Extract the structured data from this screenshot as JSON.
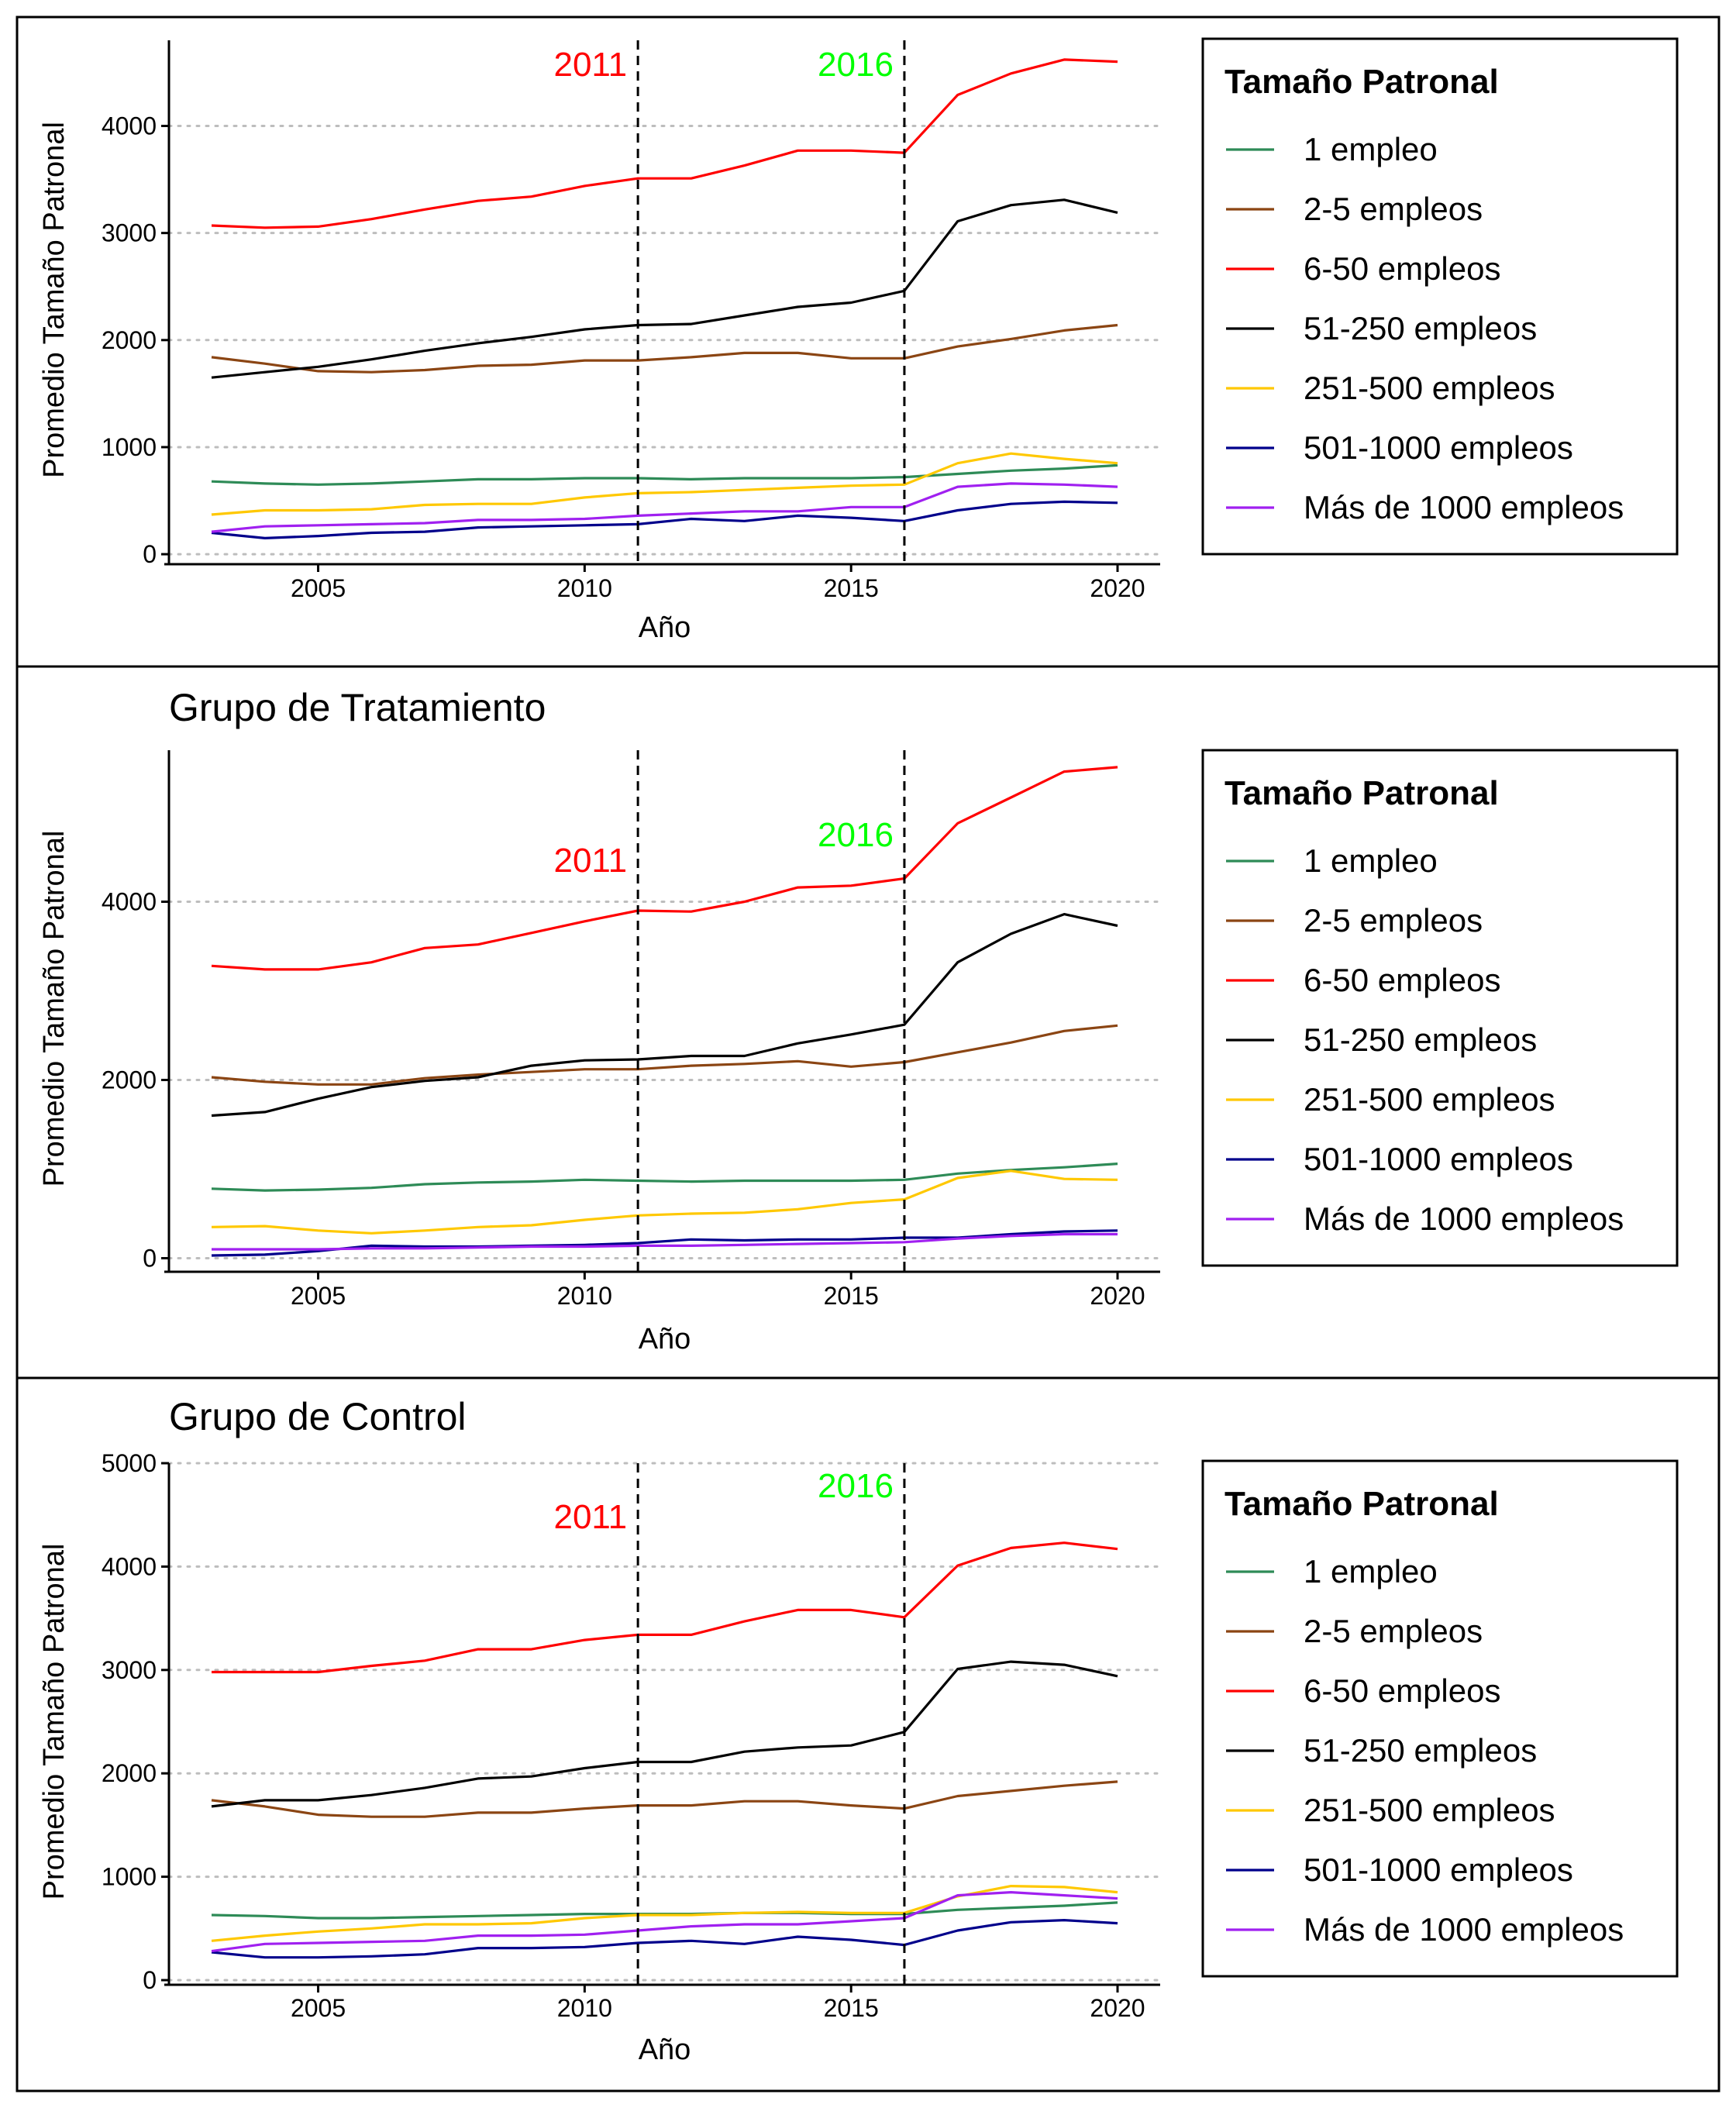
{
  "colors": {
    "1 empleo": "#2E8B57",
    "2-5 empleos": "#8B4513",
    "6-50 empleos": "#FF0000",
    "51-250 empleos": "#000000",
    "251-500 empleos": "#FFC800",
    "501-1000 empleos": "#00008B",
    "Más de 1000 empleos": "#A020F0",
    "event_2011": "#FF0000",
    "event_2016": "#00FF00"
  },
  "chart_data": [
    {
      "type": "line",
      "title": "",
      "xlabel": "Año",
      "ylabel": "Promedio Tamaño Patronal",
      "xlim": [
        2002.2,
        2020.8
      ],
      "ylim": [
        -50,
        4800
      ],
      "xticks": [
        2005,
        2010,
        2015,
        2020
      ],
      "yticks": [
        0,
        1000,
        2000,
        3000,
        4000
      ],
      "grid": "horizontal dotted",
      "legend_title": "Tamaño Patronal",
      "legend_position": "right",
      "events": [
        {
          "x": 2011,
          "label": "2011",
          "color": "#FF0000"
        },
        {
          "x": 2016,
          "label": "2016",
          "color": "#00FF00"
        }
      ],
      "x": [
        2003,
        2004,
        2005,
        2006,
        2007,
        2008,
        2009,
        2010,
        2011,
        2012,
        2013,
        2014,
        2015,
        2016,
        2017,
        2018,
        2019,
        2020
      ],
      "series": [
        {
          "name": "1 empleo",
          "values": [
            680,
            660,
            650,
            660,
            680,
            700,
            700,
            710,
            710,
            700,
            710,
            710,
            710,
            720,
            750,
            780,
            800,
            830
          ]
        },
        {
          "name": "2-5 empleos",
          "values": [
            1840,
            1780,
            1710,
            1700,
            1720,
            1760,
            1770,
            1810,
            1810,
            1840,
            1880,
            1880,
            1830,
            1830,
            1940,
            2010,
            2090,
            2140
          ]
        },
        {
          "name": "6-50 empleos",
          "values": [
            3070,
            3050,
            3060,
            3130,
            3220,
            3300,
            3340,
            3440,
            3510,
            3510,
            3630,
            3770,
            3770,
            3750,
            4290,
            4490,
            4620,
            4600
          ]
        },
        {
          "name": "51-250 empleos",
          "values": [
            1650,
            1700,
            1750,
            1820,
            1900,
            1970,
            2030,
            2100,
            2140,
            2150,
            2230,
            2310,
            2350,
            2460,
            3110,
            3260,
            3310,
            3190
          ]
        },
        {
          "name": "251-500 empleos",
          "values": [
            370,
            410,
            410,
            420,
            460,
            470,
            470,
            530,
            570,
            580,
            600,
            620,
            640,
            650,
            850,
            940,
            890,
            850
          ]
        },
        {
          "name": "501-1000 empleos",
          "values": [
            200,
            150,
            170,
            200,
            210,
            250,
            260,
            270,
            280,
            330,
            310,
            360,
            340,
            310,
            410,
            470,
            490,
            480
          ]
        },
        {
          "name": "Más de 1000 empleos",
          "values": [
            210,
            260,
            270,
            280,
            290,
            320,
            320,
            330,
            360,
            380,
            400,
            400,
            440,
            440,
            630,
            660,
            650,
            630
          ]
        }
      ]
    },
    {
      "type": "line",
      "title": "Grupo de Tratamiento",
      "xlabel": "Año",
      "ylabel": "Promedio Tamaño Patronal",
      "xlim": [
        2002.2,
        2020.8
      ],
      "ylim": [
        -100,
        5700
      ],
      "xticks": [
        2005,
        2010,
        2015,
        2020
      ],
      "yticks": [
        0,
        2000,
        4000
      ],
      "grid": "horizontal dotted",
      "legend_title": "Tamaño Patronal",
      "legend_position": "right",
      "events": [
        {
          "x": 2011,
          "label": "2011",
          "color": "#FF0000"
        },
        {
          "x": 2016,
          "label": "2016",
          "color": "#00FF00"
        }
      ],
      "x": [
        2003,
        2004,
        2005,
        2006,
        2007,
        2008,
        2009,
        2010,
        2011,
        2012,
        2013,
        2014,
        2015,
        2016,
        2017,
        2018,
        2019,
        2020
      ],
      "series": [
        {
          "name": "1 empleo",
          "values": [
            780,
            760,
            770,
            790,
            830,
            850,
            860,
            880,
            870,
            860,
            870,
            870,
            870,
            880,
            950,
            990,
            1020,
            1060
          ]
        },
        {
          "name": "2-5 empleos",
          "values": [
            2030,
            1980,
            1950,
            1950,
            2020,
            2060,
            2090,
            2120,
            2120,
            2160,
            2180,
            2210,
            2150,
            2200,
            2310,
            2420,
            2550,
            2610
          ]
        },
        {
          "name": "6-50 empleos",
          "values": [
            3280,
            3240,
            3240,
            3320,
            3480,
            3520,
            3650,
            3780,
            3900,
            3890,
            4000,
            4160,
            4180,
            4260,
            4880,
            5170,
            5460,
            5510
          ]
        },
        {
          "name": "51-250 empleos",
          "values": [
            1600,
            1640,
            1790,
            1920,
            1990,
            2030,
            2160,
            2220,
            2230,
            2270,
            2270,
            2410,
            2510,
            2620,
            3320,
            3640,
            3860,
            3730
          ]
        },
        {
          "name": "251-500 empleos",
          "values": [
            350,
            360,
            310,
            280,
            310,
            350,
            370,
            430,
            480,
            500,
            510,
            550,
            620,
            660,
            900,
            980,
            890,
            880
          ]
        },
        {
          "name": "501-1000 empleos",
          "values": [
            30,
            40,
            80,
            140,
            130,
            130,
            140,
            150,
            170,
            210,
            200,
            210,
            210,
            230,
            230,
            270,
            300,
            310
          ]
        },
        {
          "name": "Más de 1000 empleos",
          "values": [
            100,
            100,
            100,
            110,
            110,
            120,
            130,
            130,
            140,
            140,
            150,
            160,
            170,
            180,
            220,
            250,
            270,
            270
          ]
        }
      ]
    },
    {
      "type": "line",
      "title": "Grupo de Control",
      "xlabel": "Año",
      "ylabel": "Promedio Tamaño Patronal",
      "xlim": [
        2002.2,
        2020.8
      ],
      "ylim": [
        0,
        5000
      ],
      "xticks": [
        2005,
        2010,
        2015,
        2020
      ],
      "yticks": [
        0,
        1000,
        2000,
        3000,
        4000,
        5000
      ],
      "grid": "horizontal dotted",
      "legend_title": "Tamaño Patronal",
      "legend_position": "right",
      "events": [
        {
          "x": 2011,
          "label": "2011",
          "color": "#FF0000"
        },
        {
          "x": 2016,
          "label": "2016",
          "color": "#00FF00"
        }
      ],
      "x": [
        2003,
        2004,
        2005,
        2006,
        2007,
        2008,
        2009,
        2010,
        2011,
        2012,
        2013,
        2014,
        2015,
        2016,
        2017,
        2018,
        2019,
        2020
      ],
      "series": [
        {
          "name": "1 empleo",
          "values": [
            630,
            620,
            600,
            600,
            610,
            620,
            630,
            640,
            640,
            640,
            650,
            650,
            640,
            640,
            680,
            700,
            720,
            750
          ]
        },
        {
          "name": "2-5 empleos",
          "values": [
            1740,
            1680,
            1600,
            1580,
            1580,
            1620,
            1620,
            1660,
            1690,
            1690,
            1730,
            1730,
            1690,
            1660,
            1780,
            1830,
            1880,
            1920
          ]
        },
        {
          "name": "6-50 empleos",
          "values": [
            2980,
            2980,
            2980,
            3040,
            3090,
            3200,
            3200,
            3290,
            3340,
            3340,
            3470,
            3580,
            3580,
            3510,
            4010,
            4180,
            4230,
            4170
          ]
        },
        {
          "name": "51-250 empleos",
          "values": [
            1680,
            1740,
            1740,
            1790,
            1860,
            1950,
            1970,
            2050,
            2110,
            2110,
            2210,
            2250,
            2270,
            2400,
            3010,
            3080,
            3050,
            2940
          ]
        },
        {
          "name": "251-500 empleos",
          "values": [
            380,
            430,
            470,
            500,
            540,
            540,
            550,
            600,
            630,
            630,
            650,
            660,
            650,
            650,
            810,
            910,
            900,
            850
          ]
        },
        {
          "name": "501-1000 empleos",
          "values": [
            270,
            220,
            220,
            230,
            250,
            310,
            310,
            320,
            360,
            380,
            350,
            420,
            390,
            340,
            480,
            560,
            580,
            550
          ]
        },
        {
          "name": "Más de 1000 empleos",
          "values": [
            280,
            350,
            360,
            370,
            380,
            430,
            430,
            440,
            480,
            520,
            540,
            540,
            570,
            600,
            820,
            850,
            820,
            790
          ]
        }
      ]
    }
  ]
}
